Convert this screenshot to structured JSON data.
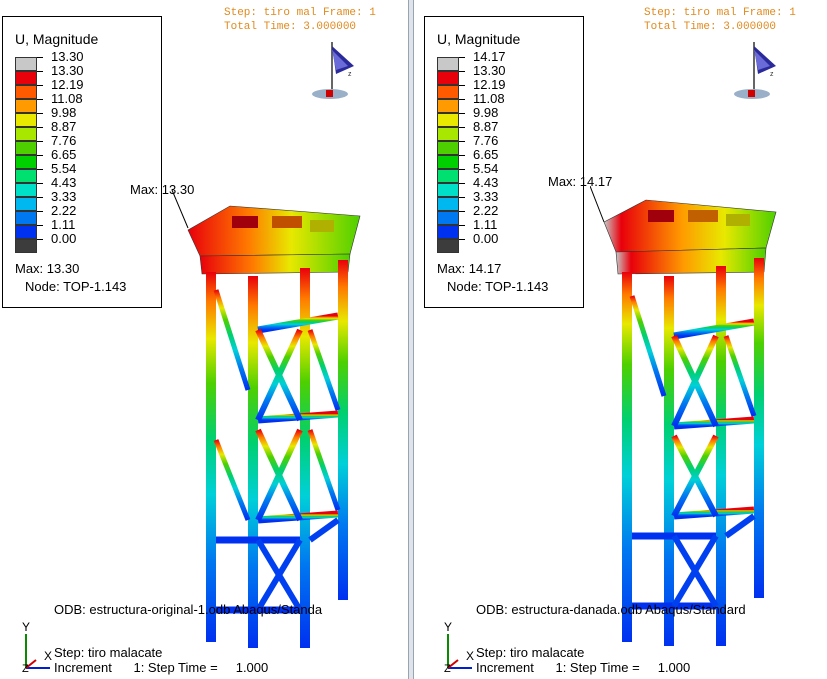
{
  "left": {
    "legend_title": "U, Magnitude",
    "legend_values": [
      "13.30",
      "13.30",
      "12.19",
      "11.08",
      "9.98",
      "8.87",
      "7.76",
      "6.65",
      "5.54",
      "4.43",
      "3.33",
      "2.22",
      "1.11",
      "0.00"
    ],
    "legend_max": "Max: 13.30",
    "legend_node": "Node: TOP-1.143",
    "step_header": "Step: tiro mal Frame: 1",
    "total_time": "Total Time: 3.000000",
    "max_label": "Max: 13.30",
    "odb": "ODB: estructura-original-1.odb    Abaqus/Standa",
    "step_line": "Step: tiro malacate",
    "increment_line": "Increment      1: Step Time =     1.000",
    "axis_y": "Y",
    "axis_x": "X",
    "axis_z": "Z"
  },
  "right": {
    "legend_title": "U, Magnitude",
    "legend_values": [
      "14.17",
      "13.30",
      "12.19",
      "11.08",
      "9.98",
      "8.87",
      "7.76",
      "6.65",
      "5.54",
      "4.43",
      "3.33",
      "2.22",
      "1.11",
      "0.00"
    ],
    "legend_max": "Max: 14.17",
    "legend_node": "Node: TOP-1.143",
    "step_header": "Step: tiro mal Frame: 1",
    "total_time": "Total Time: 3.000000",
    "max_label": "Max: 14.17",
    "odb": "ODB: estructura-danada.odb    Abaqus/Standard",
    "step_line": "Step: tiro malacate",
    "increment_line": "Increment      1: Step Time =     1.000",
    "axis_y": "Y",
    "axis_x": "X",
    "axis_z": "Z"
  },
  "legend_colors": [
    "#c8c8c8",
    "#e8000b",
    "#ff5a00",
    "#ff9a00",
    "#e8e800",
    "#a8e800",
    "#4ed000",
    "#00d000",
    "#00e070",
    "#00e0c8",
    "#00b8f0",
    "#0078f0",
    "#0030f0",
    "#3c3c3c"
  ]
}
